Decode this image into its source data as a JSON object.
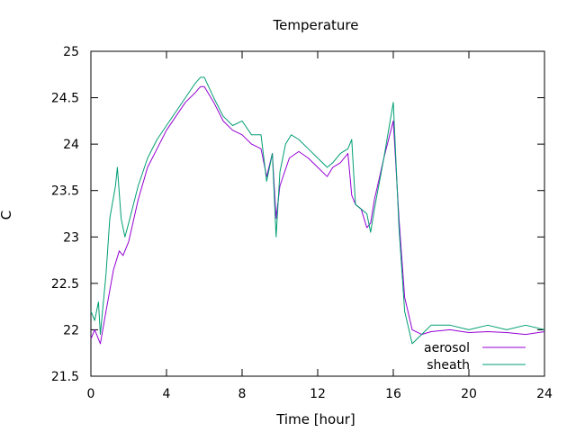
{
  "chart_data": {
    "type": "line",
    "title": "Temperature",
    "xlabel": "Time [hour]",
    "ylabel": "C",
    "xlim": [
      0,
      24
    ],
    "ylim": [
      21.5,
      25
    ],
    "xticks": [
      0,
      4,
      8,
      12,
      16,
      20,
      24
    ],
    "yticks": [
      21.5,
      22,
      22.5,
      23,
      23.5,
      24,
      24.5,
      25
    ],
    "xtick_labels": [
      "0",
      "4",
      "8",
      "12",
      "16",
      "20",
      "24"
    ],
    "ytick_labels": [
      "21.5",
      "22",
      "22.5",
      "23",
      "23.5",
      "24",
      "24.5",
      "25"
    ],
    "grid": false,
    "legend_position": "bottom-right",
    "series": [
      {
        "name": "aerosol",
        "color": "#9400d3",
        "x": [
          0,
          0.2,
          0.4,
          0.5,
          0.8,
          1.2,
          1.5,
          1.7,
          2.0,
          2.5,
          3.0,
          3.5,
          4.0,
          4.5,
          5.0,
          5.5,
          5.8,
          6.0,
          6.5,
          7.0,
          7.5,
          8.0,
          8.5,
          9.0,
          9.3,
          9.6,
          9.8,
          10.0,
          10.5,
          11.0,
          11.5,
          12.0,
          12.5,
          12.8,
          13.2,
          13.6,
          13.8,
          14.0,
          14.3,
          14.6,
          14.8,
          15.0,
          15.5,
          16.0,
          16.3,
          16.6,
          17.0,
          17.5,
          18.0,
          19.0,
          20.0,
          21.0,
          22.0,
          23.0,
          24.0
        ],
        "values": [
          21.9,
          22.0,
          21.9,
          21.85,
          22.2,
          22.65,
          22.85,
          22.8,
          22.95,
          23.4,
          23.75,
          23.95,
          24.15,
          24.3,
          24.45,
          24.55,
          24.62,
          24.62,
          24.45,
          24.25,
          24.15,
          24.1,
          24.0,
          23.95,
          23.65,
          23.9,
          23.2,
          23.55,
          23.85,
          23.92,
          23.85,
          23.75,
          23.65,
          23.75,
          23.8,
          23.9,
          23.45,
          23.35,
          23.3,
          23.1,
          23.15,
          23.4,
          23.85,
          24.25,
          23.2,
          22.35,
          22.0,
          21.95,
          21.98,
          22.0,
          21.97,
          21.98,
          21.97,
          21.95,
          21.98
        ]
      },
      {
        "name": "sheath",
        "color": "#009e73",
        "x": [
          0,
          0.2,
          0.4,
          0.5,
          0.8,
          1.0,
          1.3,
          1.4,
          1.6,
          1.8,
          2.0,
          2.5,
          3.0,
          3.5,
          4.0,
          4.5,
          5.0,
          5.5,
          5.8,
          6.0,
          6.5,
          7.0,
          7.5,
          8.0,
          8.5,
          9.0,
          9.3,
          9.6,
          9.8,
          10.0,
          10.3,
          10.6,
          11.0,
          11.5,
          12.0,
          12.5,
          12.8,
          13.2,
          13.6,
          13.8,
          14.0,
          14.3,
          14.6,
          14.8,
          15.0,
          15.5,
          16.0,
          16.3,
          16.6,
          17.0,
          17.5,
          18.0,
          19.0,
          20.0,
          21.0,
          22.0,
          23.0,
          24.0
        ],
        "values": [
          22.2,
          22.1,
          22.3,
          21.95,
          22.6,
          23.2,
          23.55,
          23.75,
          23.2,
          23.0,
          23.15,
          23.55,
          23.85,
          24.05,
          24.2,
          24.35,
          24.5,
          24.65,
          24.72,
          24.72,
          24.5,
          24.3,
          24.2,
          24.25,
          24.1,
          24.1,
          23.6,
          23.9,
          23.0,
          23.7,
          24.0,
          24.1,
          24.05,
          23.95,
          23.85,
          23.75,
          23.8,
          23.9,
          23.95,
          24.05,
          23.35,
          23.3,
          23.25,
          23.05,
          23.3,
          23.85,
          24.45,
          23.1,
          22.2,
          21.85,
          21.95,
          22.05,
          22.05,
          22.0,
          22.05,
          22.0,
          22.05,
          22.0
        ]
      }
    ]
  }
}
